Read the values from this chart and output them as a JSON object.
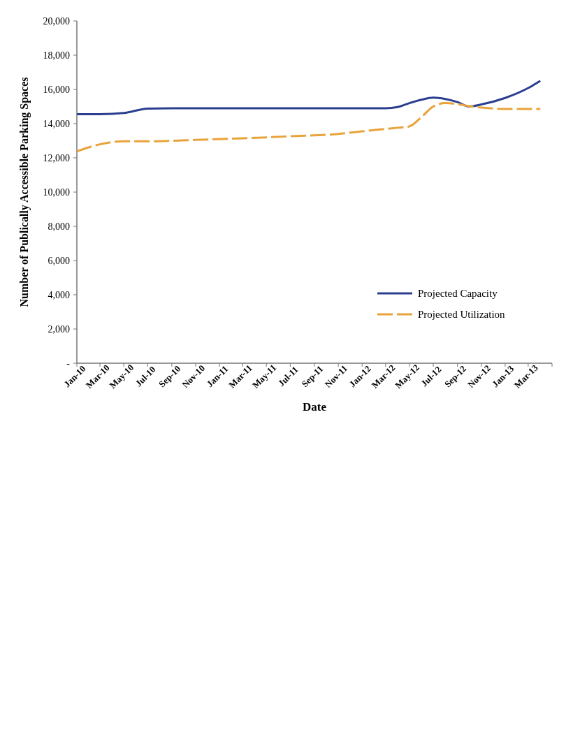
{
  "chart_data": {
    "type": "line",
    "xlabel": "Date",
    "ylabel": "Number of Publically Accessible Parking Spaces",
    "x": [
      "2010-01",
      "2010-03",
      "2010-05",
      "2010-07",
      "2010-09",
      "2010-11",
      "2011-03",
      "2011-07",
      "2011-11",
      "2012-01",
      "2012-03",
      "2012-04",
      "2012-05",
      "2012-06",
      "2012-07",
      "2012-08",
      "2012-09",
      "2012-10",
      "2012-11",
      "2013-01",
      "2013-03",
      "2013-04"
    ],
    "series": [
      {
        "name": "Projected Capacity",
        "color": "#2b3f8f",
        "line_style": "solid",
        "values": [
          14550,
          14550,
          14620,
          14880,
          14900,
          14900,
          14900,
          14900,
          14900,
          14900,
          14900,
          14970,
          15200,
          15400,
          15520,
          15440,
          15260,
          15000,
          15120,
          15500,
          16080,
          16500
        ]
      },
      {
        "name": "Projected Utilization",
        "color": "#e8a33a",
        "line_style": "dashed",
        "values": [
          12380,
          12790,
          12970,
          12970,
          13000,
          13050,
          13140,
          13260,
          13400,
          13550,
          13690,
          13760,
          13840,
          14390,
          15000,
          15200,
          15140,
          15020,
          14940,
          14860,
          14860,
          14860
        ]
      }
    ],
    "xlim": [
      "2010-01",
      "2013-05"
    ],
    "xticks": [
      {
        "value": "2010-01",
        "label": "Jan-10"
      },
      {
        "value": "2010-03",
        "label": "Mar-10"
      },
      {
        "value": "2010-05",
        "label": "May-10"
      },
      {
        "value": "2010-07",
        "label": "Jul-10"
      },
      {
        "value": "2010-09",
        "label": "Sep-10"
      },
      {
        "value": "2010-11",
        "label": "Nov-10"
      },
      {
        "value": "2011-01",
        "label": "Jan-11"
      },
      {
        "value": "2011-03",
        "label": "Mar-11"
      },
      {
        "value": "2011-05",
        "label": "May-11"
      },
      {
        "value": "2011-07",
        "label": "Jul-11"
      },
      {
        "value": "2011-09",
        "label": "Sep-11"
      },
      {
        "value": "2011-11",
        "label": "Nov-11"
      },
      {
        "value": "2012-01",
        "label": "Jan-12"
      },
      {
        "value": "2012-03",
        "label": "Mar-12"
      },
      {
        "value": "2012-05",
        "label": "May-12"
      },
      {
        "value": "2012-07",
        "label": "Jul-12"
      },
      {
        "value": "2012-09",
        "label": "Sep-12"
      },
      {
        "value": "2012-11",
        "label": "Nov-12"
      },
      {
        "value": "2013-01",
        "label": "Jan-13"
      },
      {
        "value": "2013-03",
        "label": "Mar-13"
      },
      {
        "value": "2013-05",
        "label": null
      }
    ],
    "ylim": [
      0,
      20000
    ],
    "yticks": [
      {
        "value": 0,
        "label": "-"
      },
      {
        "value": 2000,
        "label": "2,000"
      },
      {
        "value": 4000,
        "label": "4,000"
      },
      {
        "value": 6000,
        "label": "6,000"
      },
      {
        "value": 8000,
        "label": "8,000"
      },
      {
        "value": 10000,
        "label": "10,000"
      },
      {
        "value": 12000,
        "label": "12,000"
      },
      {
        "value": 14000,
        "label": "14,000"
      },
      {
        "value": 16000,
        "label": "16,000"
      },
      {
        "value": 18000,
        "label": "18,000"
      },
      {
        "value": 20000,
        "label": "20,000"
      }
    ],
    "legend": "bottom right"
  }
}
